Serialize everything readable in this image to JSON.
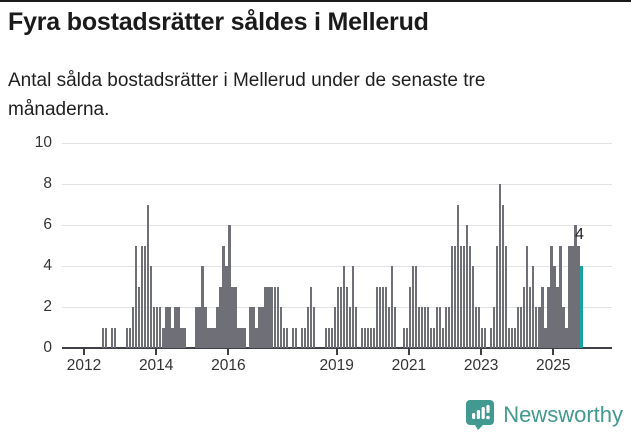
{
  "header": {
    "title": "Fyra bostadsrätter såldes i Mellerud",
    "subtitle": "Antal sålda bostadsrätter i Mellerud under de senaste tre månaderna."
  },
  "chart_data": {
    "type": "bar",
    "title": "Fyra bostadsrätter såldes i Mellerud",
    "subtitle": "Antal sålda bostadsrätter i Mellerud under de senaste tre månaderna.",
    "unit": "antal sålda bostadsrätter (rullande tre månader)",
    "frequency": "monthly",
    "start": "2012-07",
    "end": "2025-10",
    "values": [
      1,
      1,
      0,
      1,
      1,
      0,
      0,
      0,
      1,
      1,
      2,
      5,
      3,
      5,
      5,
      7,
      4,
      2,
      2,
      2,
      1,
      2,
      2,
      1,
      2,
      2,
      1,
      1,
      0,
      0,
      0,
      2,
      2,
      4,
      2,
      1,
      1,
      1,
      2,
      3,
      5,
      4,
      6,
      3,
      3,
      1,
      1,
      1,
      0,
      2,
      2,
      1,
      2,
      2,
      3,
      3,
      3,
      3,
      3,
      2,
      1,
      1,
      0,
      1,
      1,
      0,
      1,
      1,
      2,
      3,
      2,
      0,
      0,
      0,
      1,
      1,
      1,
      2,
      3,
      3,
      4,
      3,
      2,
      4,
      2,
      0,
      1,
      1,
      1,
      1,
      1,
      3,
      3,
      3,
      3,
      2,
      4,
      2,
      0,
      0,
      1,
      1,
      3,
      4,
      4,
      2,
      2,
      2,
      2,
      1,
      1,
      2,
      2,
      1,
      2,
      2,
      5,
      5,
      7,
      5,
      5,
      6,
      5,
      4,
      2,
      2,
      1,
      1,
      0,
      1,
      2,
      5,
      8,
      7,
      5,
      1,
      1,
      1,
      2,
      2,
      3,
      5,
      3,
      4,
      2,
      2,
      3,
      1,
      3,
      5,
      4,
      3,
      5,
      2,
      1,
      5,
      5,
      6,
      5,
      4
    ],
    "ylim": [
      0,
      10
    ],
    "y_ticks": [
      0,
      2,
      4,
      6,
      8,
      10
    ],
    "x_ticks": [
      2012,
      2014,
      2016,
      2019,
      2021,
      2023,
      2025
    ],
    "grid": "horizontal",
    "legend": "none",
    "bar_color": "#6f6f77",
    "highlight_color": "#18a1a1",
    "highlight_last": true,
    "annotation": {
      "label": "4",
      "value": 4
    }
  },
  "footer": {
    "brand": "Newsworthy"
  }
}
